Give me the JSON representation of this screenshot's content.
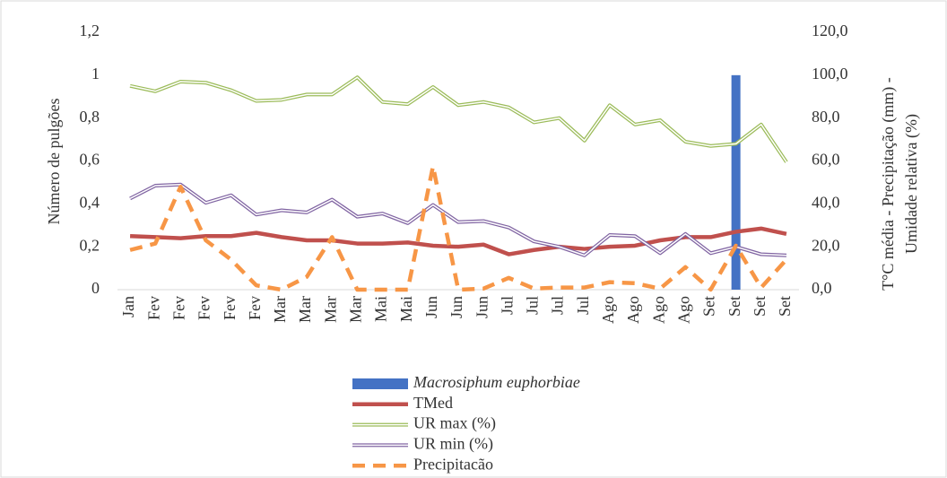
{
  "chart_data": {
    "type": "line",
    "ylabel": "Número de pulgões",
    "y2label": [
      "T°C média - Precipitação (mm) -",
      "Umidade relativa (%)"
    ],
    "categories": [
      "Jan",
      "Fev",
      "Fev",
      "Fev",
      "Fev",
      "Fev",
      "Mar",
      "Mar",
      "Mar",
      "Mar",
      "Mai",
      "Mai",
      "Jun",
      "Jun",
      "Jun",
      "Jul",
      "Jul",
      "Jul",
      "Jul",
      "Ago",
      "Ago",
      "Ago",
      "Ago",
      "Set",
      "Set",
      "Set",
      "Set"
    ],
    "ylim": [
      0,
      1.2
    ],
    "yticks": [
      0,
      {
        "value": 0.2,
        "label": "0,2"
      },
      {
        "value": 0.4,
        "label": "0,4"
      },
      {
        "value": 0.6,
        "label": "0,6"
      },
      {
        "value": 0.8,
        "label": "0,8"
      },
      1,
      {
        "value": 1.2,
        "label": "1,2"
      }
    ],
    "y2lim": [
      0,
      120
    ],
    "y2ticks": [
      {
        "value": 0,
        "label": "0,0"
      },
      {
        "value": 20,
        "label": "20,0"
      },
      {
        "value": 40,
        "label": "40,0"
      },
      {
        "value": 60,
        "label": "60,0"
      },
      {
        "value": 80,
        "label": "80,0"
      },
      {
        "value": 100,
        "label": "100,0"
      },
      {
        "value": 120,
        "label": "120,0"
      }
    ],
    "legend": "bottom",
    "series": [
      {
        "name": "Macrosiphum euphorbiae",
        "type": "bar",
        "color": "#4472c4",
        "values": [
          0,
          0,
          0,
          0,
          0,
          0,
          0,
          0,
          0,
          0,
          0,
          0,
          0,
          0,
          0,
          0,
          0,
          0,
          0,
          0,
          0,
          0,
          0,
          0,
          1,
          0,
          0
        ]
      },
      {
        "name": "TMed",
        "axis": "y2",
        "style": "solid",
        "color": "#c0504d",
        "values": [
          25,
          24.5,
          24,
          25,
          25,
          26.5,
          24.5,
          23,
          23,
          21.5,
          21.5,
          22,
          20.5,
          20,
          21,
          16.5,
          18.5,
          20,
          19,
          20,
          20.5,
          23,
          24.5,
          24.5,
          27,
          28.5,
          26
        ]
      },
      {
        "name": "UR max (%)",
        "axis": "y2",
        "style": "double",
        "color": "#9bbb59",
        "values": [
          95,
          92.5,
          97,
          96.5,
          93,
          88,
          88.5,
          91,
          91,
          99,
          87.5,
          86.5,
          94.5,
          86,
          87.5,
          85,
          78,
          80,
          69.5,
          86,
          77,
          79,
          69,
          67,
          68,
          77,
          59.5
        ]
      },
      {
        "name": "UR min (%)",
        "axis": "y2",
        "style": "double",
        "color": "#8064a2",
        "values": [
          42.5,
          48.5,
          49,
          40.5,
          44,
          35,
          37,
          36,
          42,
          34,
          35.5,
          31,
          39.5,
          31.5,
          32,
          29,
          22.5,
          20,
          16,
          25.5,
          25,
          17,
          26,
          17,
          20,
          16.5,
          16
        ]
      },
      {
        "name": "Precipitacão",
        "axis": "y2",
        "style": "dashed",
        "color": "#f79646",
        "values": [
          18.5,
          21.5,
          48,
          23,
          14,
          2,
          0,
          6,
          24.5,
          0,
          0,
          0,
          57.5,
          0,
          0.5,
          5.5,
          0.5,
          1,
          1,
          3.5,
          3,
          0.5,
          10.5,
          0,
          20.5,
          1,
          14
        ]
      }
    ]
  }
}
